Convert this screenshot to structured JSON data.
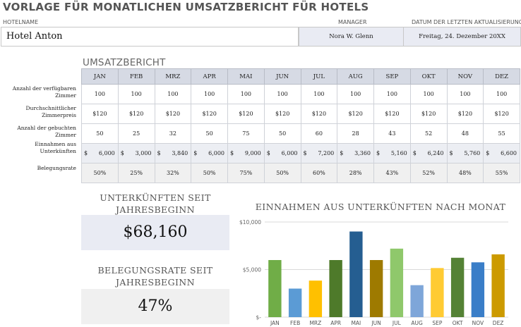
{
  "title": "VORLAGE FÜR MONATLICHEN UMSATZBERICHT FÜR HOTELS",
  "header": {
    "hotel_label": "HOTELNAME",
    "hotel_name": "Hotel Anton",
    "manager_label": "MANAGER",
    "manager_name": "Nora W. Glenn",
    "updated_label": "DATUM DER LETZTEN AKTUALISIERUNG",
    "updated_value": "Freitag, 24. Dezember 20XX"
  },
  "report": {
    "heading": "UMSATZBERICHT",
    "months": [
      "JAN",
      "FEB",
      "MRZ",
      "APR",
      "MAI",
      "JUN",
      "JUL",
      "AUG",
      "SEP",
      "OKT",
      "NOV",
      "DEZ"
    ],
    "rows": [
      {
        "label": [
          "Anzahl der verfügbaren",
          "Zimmer"
        ],
        "values": [
          "100",
          "100",
          "100",
          "100",
          "100",
          "100",
          "100",
          "100",
          "100",
          "100",
          "100",
          "100"
        ]
      },
      {
        "label": [
          "Durchschnittlicher",
          "Zimmerpreis"
        ],
        "values": [
          "$120",
          "$120",
          "$120",
          "$120",
          "$120",
          "$120",
          "$120",
          "$120",
          "$120",
          "$120",
          "$120",
          "$120"
        ]
      },
      {
        "label": [
          "Anzahl der gebuchten",
          "Zimmer"
        ],
        "values": [
          "50",
          "25",
          "32",
          "50",
          "75",
          "50",
          "60",
          "28",
          "43",
          "52",
          "48",
          "55"
        ]
      },
      {
        "label": [
          "Einnahmen aus",
          "Unterkünften"
        ],
        "currency": "$",
        "values": [
          "6,000",
          "3,000",
          "3,840",
          "6,000",
          "9,000",
          "6,000",
          "7,200",
          "3,360",
          "5,160",
          "6,240",
          "5,760",
          "6,600"
        ]
      },
      {
        "label": [
          "Belegungsrate"
        ],
        "values": [
          "50%",
          "25%",
          "32%",
          "50%",
          "75%",
          "50%",
          "60%",
          "28%",
          "43%",
          "52%",
          "48%",
          "55%"
        ]
      }
    ]
  },
  "kpis": {
    "revenue_title": [
      "UNTERKÜNFTEN SEIT",
      "JAHRESBEGINN"
    ],
    "revenue_value": "$68,160",
    "occupancy_title": [
      "BELEGUNGSRATE SEIT",
      "JAHRESBEGINN"
    ],
    "occupancy_value": "47%"
  },
  "chart_data": {
    "type": "bar",
    "title": "EINNAHMEN AUS UNTERKÜNFTEN NACH MONAT",
    "categories": [
      "JAN",
      "FEB",
      "MRZ",
      "APR",
      "MAI",
      "JUN",
      "JUL",
      "AUG",
      "SEP",
      "OKT",
      "NOV",
      "DEZ"
    ],
    "values": [
      6000,
      3000,
      3840,
      6000,
      9000,
      6000,
      7200,
      3360,
      5160,
      6240,
      5760,
      6600
    ],
    "ylim": [
      0,
      10000
    ],
    "yticks": [
      0,
      5000,
      10000
    ],
    "ytick_labels": [
      "$-",
      "$5,000",
      "$10,000"
    ],
    "grid": true,
    "colors": [
      "#70ad47",
      "#5b9bd5",
      "#ffc000",
      "#4e7a2a",
      "#255e91",
      "#9e7a00",
      "#8fc86b",
      "#7ea6d9",
      "#ffcb33",
      "#548235",
      "#3a7ec8",
      "#cc9a00"
    ]
  }
}
